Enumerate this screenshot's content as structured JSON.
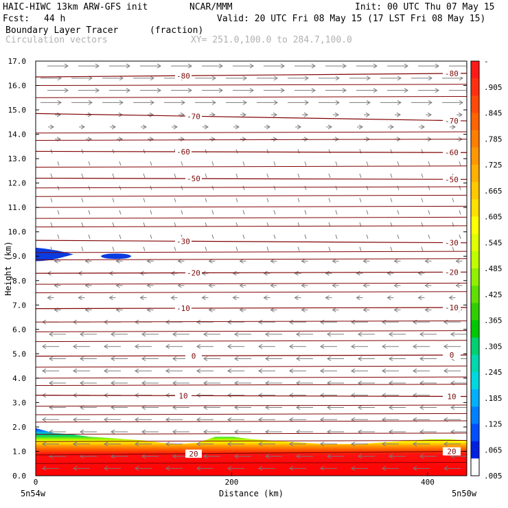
{
  "header": {
    "model": "HAIC-HIWC 13km ARW-GFS init",
    "org": "NCAR/MMM",
    "init": "Init: 00 UTC Thu 07 May 15",
    "fcst_label": "Fcst:",
    "fcst_value": "44 h",
    "valid": "Valid: 20 UTC Fri 08 May 15 (17 LST Fri 08 May 15)",
    "field": "Boundary Layer Tracer",
    "field_units": "(fraction)",
    "overlay": "Circulation vectors",
    "xy": "XY= 251.0,100.0 to 284.7,100.0"
  },
  "chart_data": {
    "type": "heatmap",
    "ylabel": "Height (km)",
    "xlabel": "Distance (km)",
    "ylim": [
      0.0,
      17.0
    ],
    "xlim": [
      0,
      440
    ],
    "y_ticks": [
      "0.0",
      "1.0",
      "2.0",
      "3.0",
      "4.0",
      "5.0",
      "6.0",
      "7.0",
      "8.0",
      "9.0",
      "10.0",
      "11.0",
      "12.0",
      "13.0",
      "14.0",
      "15.0",
      "16.0",
      "17.0"
    ],
    "x_ticks": [
      {
        "v": 0,
        "l": "0"
      },
      {
        "v": 200,
        "l": "200"
      },
      {
        "v": 400,
        "l": "400"
      }
    ],
    "x_end_labels": {
      "left": "5n54w",
      "right": "5n50w"
    },
    "colorbar_labels": [
      "-",
      ".905",
      ".845",
      ".785",
      ".725",
      ".665",
      ".605",
      ".545",
      ".485",
      ".425",
      ".365",
      ".305",
      ".245",
      ".185",
      ".125",
      ".065",
      ".005"
    ],
    "colorbar_colors": [
      "#ff1a1a",
      "#ff3010",
      "#ff4a08",
      "#ff6400",
      "#ff7e00",
      "#ff9800",
      "#ffb000",
      "#ffc800",
      "#ffe000",
      "#ffff00",
      "#e0ff00",
      "#c0ff00",
      "#90f000",
      "#60e000",
      "#30d000",
      "#00c800",
      "#00d070",
      "#00d8b0",
      "#00d8e0",
      "#00b0ff",
      "#0080ff",
      "#0050ff",
      "#0020e0",
      "#ffffff"
    ],
    "contour_lines": [
      {
        "label": "-80",
        "y_left": 16.35,
        "y_right": 16.5
      },
      {
        "label": "-70",
        "y_left": 14.85,
        "y_right": 14.55
      },
      {
        "label": "-60",
        "y_left": 13.3,
        "y_right": 13.25
      },
      {
        "label": "-50",
        "y_left": 12.2,
        "y_right": 12.15
      },
      {
        "label": "-30",
        "y_left": 9.65,
        "y_right": 9.55
      },
      {
        "label": "-20",
        "y_left": 8.3,
        "y_right": 8.35
      },
      {
        "label": "-10",
        "y_left": 6.85,
        "y_right": 6.9
      },
      {
        "label": "0",
        "y_left": 4.9,
        "y_right": 4.95
      },
      {
        "label": "10",
        "y_left": 3.3,
        "y_right": 3.25
      },
      {
        "label": "20",
        "y_left": 0.85,
        "y_right": 1.0
      }
    ],
    "tracer_top_km": [
      1.95,
      1.75,
      1.7,
      1.6,
      1.55,
      1.5,
      1.45,
      1.35,
      1.3,
      1.35,
      1.6,
      1.6,
      1.5,
      1.45,
      1.4,
      1.35,
      1.3,
      1.3,
      1.3,
      1.35,
      1.4,
      1.45,
      1.5,
      1.5,
      1.45
    ],
    "upper_blob": {
      "x_range": [
        0,
        30
      ],
      "y_range": [
        8.8,
        9.35
      ]
    }
  }
}
